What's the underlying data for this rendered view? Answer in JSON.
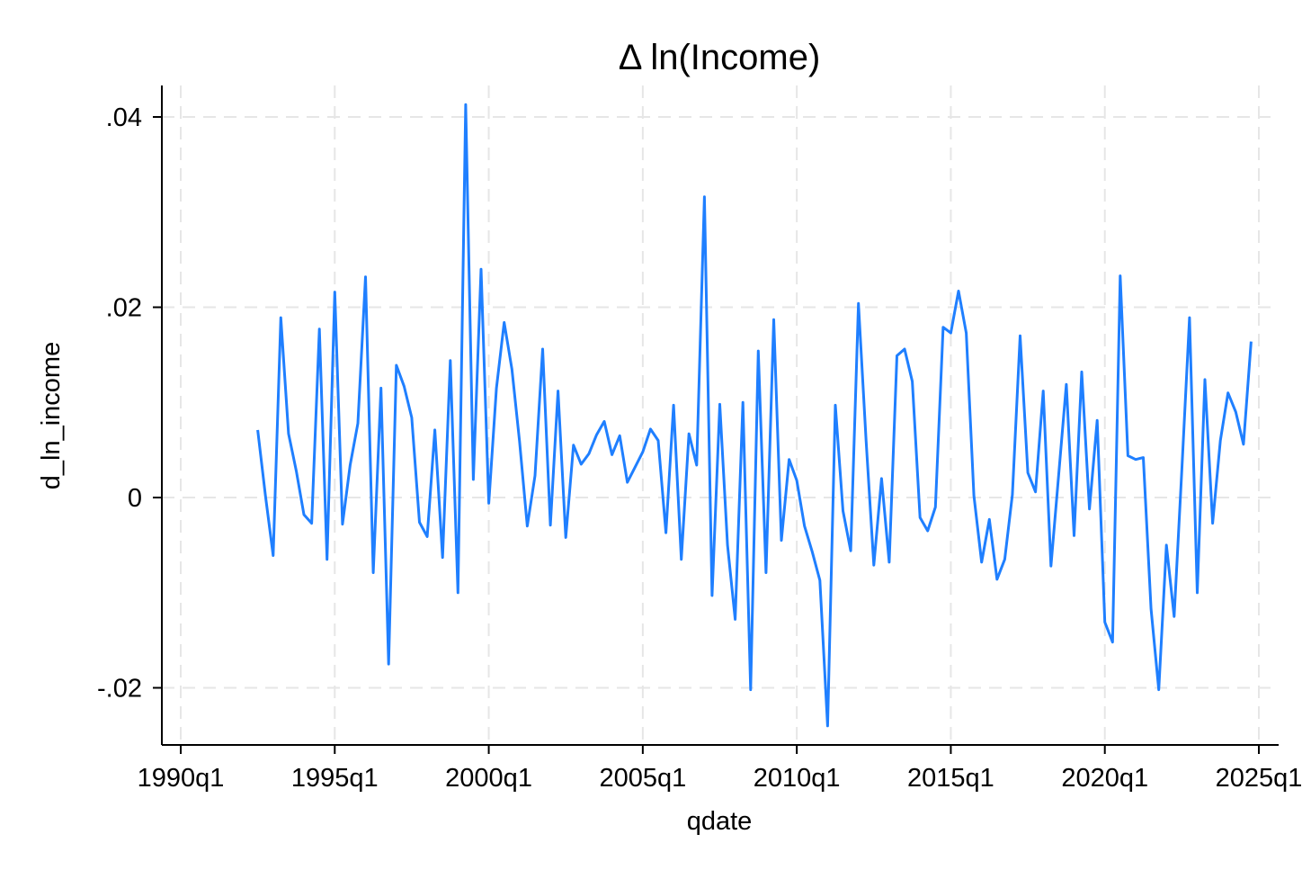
{
  "chart_data": {
    "type": "line",
    "title": "Δ ln(Income)",
    "xlabel": "qdate",
    "ylabel": "d_ln_income",
    "grid": true,
    "xlim": [
      1990.0,
      2025.0
    ],
    "ylim": [
      -0.025,
      0.04
    ],
    "x_ticks": [
      {
        "value": 1990,
        "label": "1990q1"
      },
      {
        "value": 1995,
        "label": "1995q1"
      },
      {
        "value": 2000,
        "label": "2000q1"
      },
      {
        "value": 2005,
        "label": "2005q1"
      },
      {
        "value": 2010,
        "label": "2010q1"
      },
      {
        "value": 2015,
        "label": "2015q1"
      },
      {
        "value": 2020,
        "label": "2020q1"
      },
      {
        "value": 2025,
        "label": "2025q1"
      }
    ],
    "y_ticks": [
      {
        "value": -0.02,
        "label": "-.02"
      },
      {
        "value": 0,
        "label": "0"
      },
      {
        "value": 0.02,
        "label": ".02"
      },
      {
        "value": 0.04,
        "label": ".04"
      }
    ],
    "series": [
      {
        "name": "d_ln_income",
        "color": "#1f7fff",
        "start": 1992.5,
        "step": 0.25,
        "values": [
          0.0071,
          0.0002,
          -0.0061,
          0.0189,
          0.0067,
          0.0028,
          -0.0018,
          -0.0027,
          0.0177,
          -0.0065,
          0.0216,
          -0.0028,
          0.0034,
          0.0078,
          0.0232,
          -0.0079,
          0.0115,
          -0.0175,
          0.0139,
          0.0117,
          0.0084,
          -0.0026,
          -0.0041,
          0.0071,
          -0.0063,
          0.0144,
          -0.01,
          0.0413,
          0.0019,
          0.024,
          -0.0006,
          0.0115,
          0.0184,
          0.0135,
          0.0059,
          -0.003,
          0.0023,
          0.0156,
          -0.0029,
          0.0112,
          -0.0042,
          0.0055,
          0.0035,
          0.0046,
          0.0066,
          0.008,
          0.0045,
          0.0065,
          0.0016,
          0.0032,
          0.0048,
          0.0072,
          0.006,
          -0.0037,
          0.0097,
          -0.0065,
          0.0067,
          0.0034,
          0.0316,
          -0.0103,
          0.0098,
          -0.005,
          -0.0128,
          0.01,
          -0.0202,
          0.0154,
          -0.0079,
          0.0187,
          -0.0045,
          0.004,
          0.0018,
          -0.003,
          -0.0057,
          -0.0087,
          -0.024,
          0.0097,
          -0.0014,
          -0.0056,
          0.0204,
          0.006,
          -0.0071,
          0.002,
          -0.0068,
          0.0149,
          0.0156,
          0.0122,
          -0.0021,
          -0.0035,
          -0.001,
          0.0179,
          0.0173,
          0.0217,
          0.0173,
          0.0002,
          -0.0068,
          -0.0023,
          -0.0086,
          -0.0065,
          0.0003,
          0.017,
          0.0026,
          0.0006,
          0.0112,
          -0.0072,
          0.0023,
          0.0119,
          -0.004,
          0.0132,
          -0.0012,
          0.0081,
          -0.0131,
          -0.0152,
          0.0233,
          0.0044,
          0.004,
          0.0042,
          -0.0117,
          -0.0202,
          -0.005,
          -0.0125,
          0.003,
          0.0189,
          -0.01,
          0.0124,
          -0.0027,
          0.006,
          0.011,
          0.009,
          0.0056,
          0.0164
        ]
      }
    ]
  }
}
